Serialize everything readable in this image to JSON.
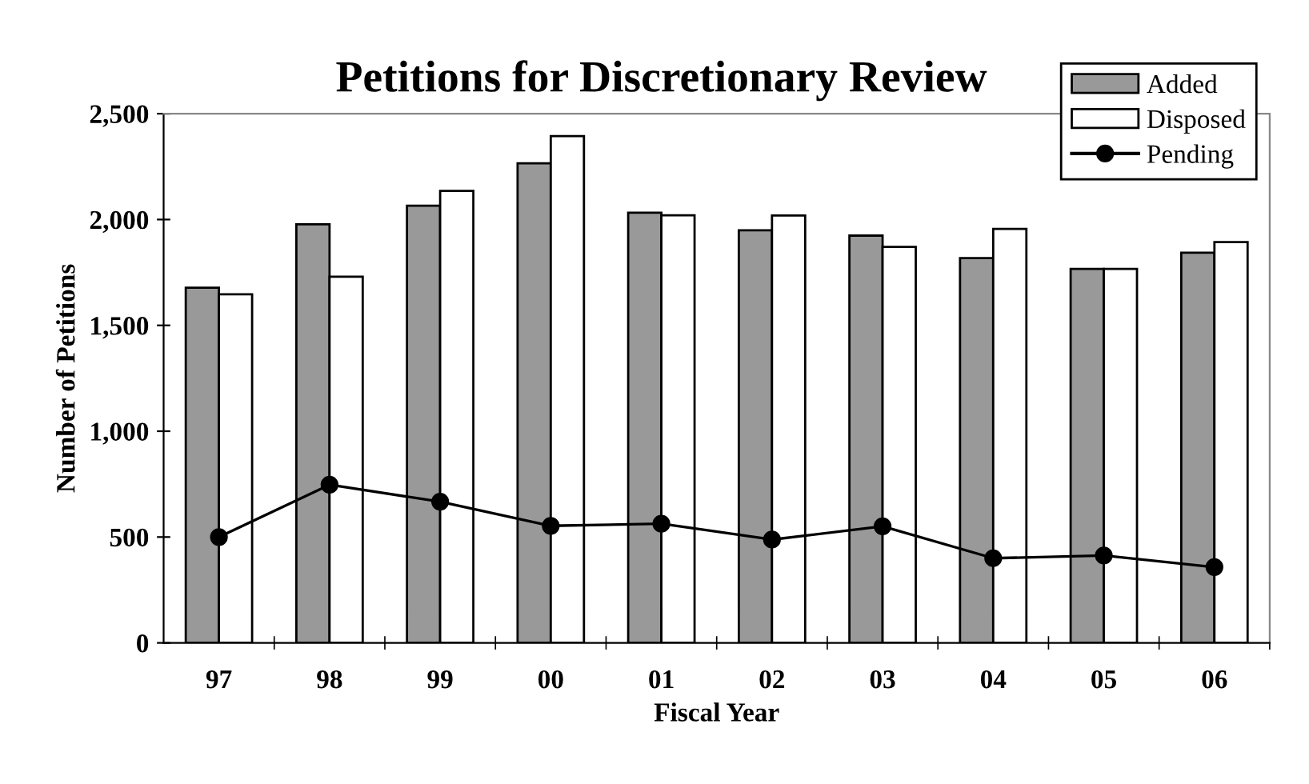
{
  "chart_data": {
    "type": "bar",
    "title": "Petitions for Discretionary Review",
    "xlabel": "Fiscal Year",
    "ylabel": "Number of Petitions",
    "categories": [
      "97",
      "98",
      "99",
      "00",
      "01",
      "02",
      "03",
      "04",
      "05",
      "06"
    ],
    "series": [
      {
        "name": "Added",
        "color": "#999999",
        "values": [
          1678,
          1977,
          2065,
          2266,
          2032,
          1949,
          1924,
          1818,
          1767,
          1843
        ]
      },
      {
        "name": "Disposed",
        "color": "#ffffff",
        "values": [
          1647,
          1730,
          2135,
          2394,
          2020,
          2019,
          1871,
          1956,
          1767,
          1893
        ]
      },
      {
        "name": "Pending",
        "type": "line",
        "color": "#000000",
        "marker": "circle",
        "values": [
          500,
          747,
          667,
          553,
          563,
          488,
          551,
          400,
          413,
          358
        ]
      }
    ],
    "ylim": [
      0,
      2500
    ],
    "yticks": [
      0,
      500,
      {
        "value": 1000,
        "label": "1,000"
      },
      {
        "value": 1500,
        "label": "1,500"
      },
      {
        "value": 2000,
        "label": "2,000"
      },
      {
        "value": 2500,
        "label": "2,500"
      }
    ],
    "grid": false,
    "legend": "top right"
  }
}
